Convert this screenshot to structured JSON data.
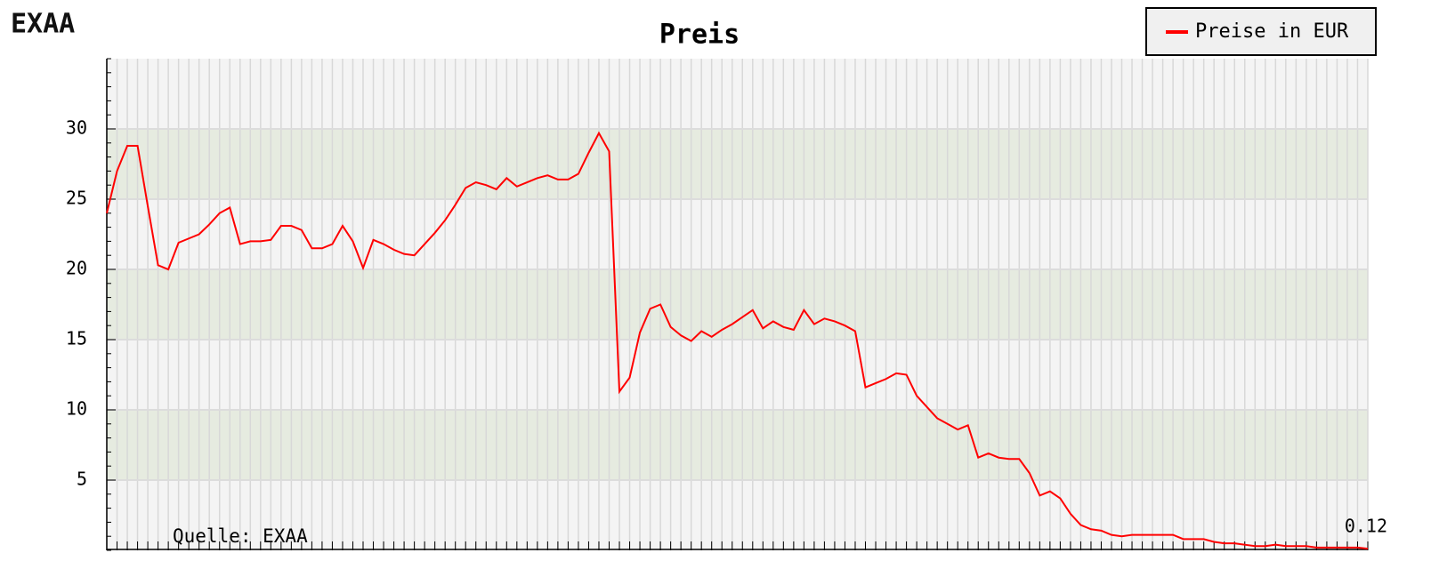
{
  "chart_data": {
    "type": "line",
    "logo": "EXAA",
    "title": "Preis",
    "source": "Quelle: EXAA",
    "categories": [
      null,
      null,
      null,
      null,
      null,
      null,
      null,
      null,
      null,
      null,
      null,
      null,
      null,
      null,
      null,
      null,
      null,
      null,
      null,
      null,
      null,
      null,
      null,
      null,
      null,
      null,
      null,
      null,
      null,
      null,
      null,
      null,
      null,
      null,
      null,
      null,
      null,
      null,
      null,
      null,
      null,
      null,
      null,
      null,
      null,
      null,
      null,
      null,
      null,
      null,
      null,
      null,
      null,
      null,
      null,
      null,
      null,
      null,
      null,
      null,
      null,
      null,
      null,
      null,
      null,
      null,
      null,
      null,
      null,
      null,
      null,
      null,
      null,
      null,
      null,
      null,
      null,
      null,
      null,
      null,
      null,
      null,
      null,
      null,
      null,
      null,
      null,
      null,
      null,
      null,
      null,
      null,
      null,
      null,
      null,
      null,
      null,
      null,
      null,
      null,
      null,
      null,
      null,
      null,
      null,
      null,
      null,
      null,
      null,
      null,
      null,
      null,
      null,
      null,
      null,
      null,
      null,
      null,
      null,
      null,
      null,
      null,
      null,
      null
    ],
    "series": [
      {
        "name": "Preise in EUR",
        "color": "#ff0000",
        "values": [
          24,
          27,
          28.8,
          28.8,
          24.5,
          20.3,
          20,
          21.9,
          22.2,
          22.5,
          23.2,
          24,
          24.4,
          21.8,
          22,
          22,
          22.1,
          23.1,
          23.1,
          22.8,
          21.5,
          21.5,
          21.8,
          23.1,
          22,
          20.1,
          22.1,
          21.8,
          21.4,
          21.1,
          21,
          21.8,
          22.6,
          23.5,
          24.6,
          25.8,
          26.2,
          26,
          25.7,
          26.5,
          25.9,
          26.2,
          26.5,
          26.7,
          26.4,
          26.4,
          26.8,
          28.3,
          29.7,
          28.4,
          11.3,
          12.3,
          15.5,
          17.2,
          17.5,
          15.9,
          15.3,
          14.9,
          15.6,
          15.2,
          15.7,
          16.1,
          16.6,
          17.1,
          15.8,
          16.3,
          15.9,
          15.7,
          17.1,
          16.1,
          16.5,
          16.3,
          16,
          15.6,
          11.6,
          11.9,
          12.2,
          12.6,
          12.5,
          11,
          10.2,
          9.4,
          9,
          8.6,
          8.9,
          6.6,
          6.9,
          6.6,
          6.5,
          6.5,
          5.5,
          3.9,
          4.2,
          3.7,
          2.6,
          1.8,
          1.5,
          1.4,
          1.1,
          1,
          1.1,
          1.1,
          1.1,
          1.1,
          1.1,
          0.8,
          0.8,
          0.8,
          0.6,
          0.5,
          0.5,
          0.4,
          0.3,
          0.3,
          0.4,
          0.3,
          0.3,
          0.3,
          0.2,
          0.2,
          0.2,
          0.2,
          0.2,
          0.12
        ]
      }
    ],
    "ylim": [
      0,
      35
    ],
    "yticks": [
      5,
      10,
      15,
      20,
      25,
      30
    ],
    "grid": true,
    "legend": "top-right"
  }
}
